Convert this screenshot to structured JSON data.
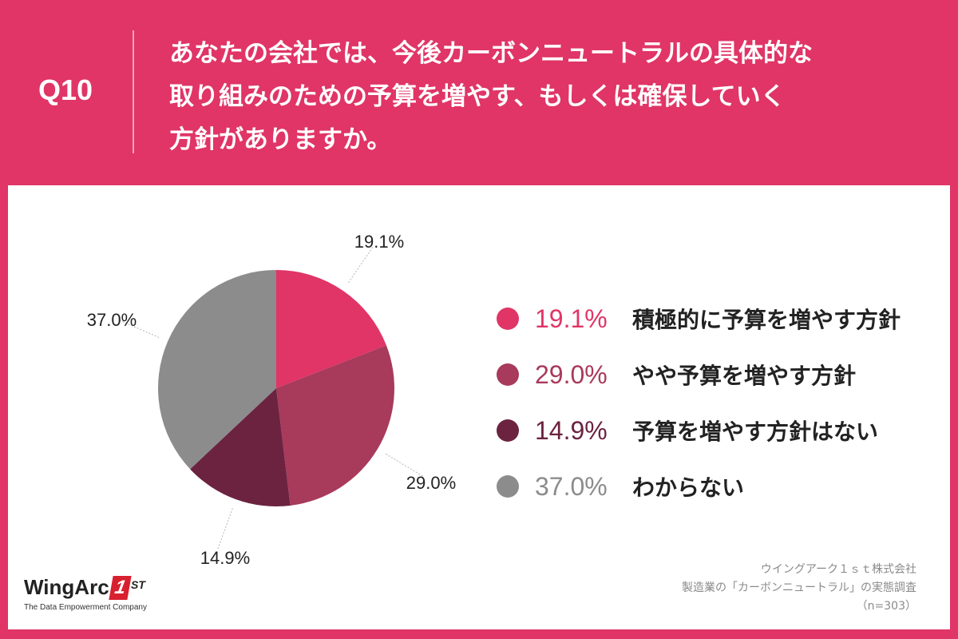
{
  "question": {
    "number": "Q10",
    "lines": [
      "あなたの会社では、今後カーボンニュートラルの具体的な",
      "取り組みのための予算を増やす、もしくは確保していく",
      "方針がありますか。"
    ]
  },
  "chart_data": {
    "type": "pie",
    "title": "",
    "slices": [
      {
        "label": "積極的に予算を増やす方針",
        "value": 19.1,
        "display": "19.1%",
        "color": "#e03566"
      },
      {
        "label": "やや予算を増やす方針",
        "value": 29.0,
        "display": "29.0%",
        "color": "#a83a5c"
      },
      {
        "label": "予算を増やす方針はない",
        "value": 14.9,
        "display": "14.9%",
        "color": "#6b2340"
      },
      {
        "label": "わからない",
        "value": 37.0,
        "display": "37.0%",
        "color": "#8c8c8c"
      }
    ],
    "legend_position": "right"
  },
  "source": {
    "company": "ウイングアーク１ｓｔ株式会社",
    "survey": "製造業の「カーボンニュートラル」の実態調査",
    "sample": "（n=303）"
  },
  "logo": {
    "name": "WingArc",
    "mark": "1",
    "suffix": "ST",
    "tagline": "The Data Empowerment Company"
  },
  "colors": {
    "background": "#e03566",
    "panel": "#ffffff"
  }
}
